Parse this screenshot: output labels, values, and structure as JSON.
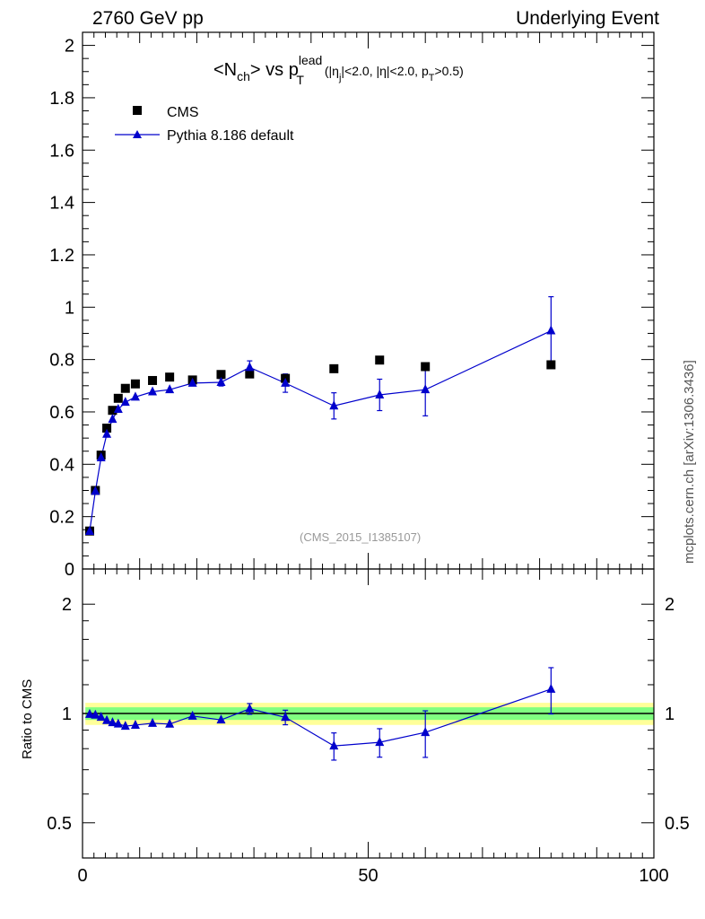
{
  "header": {
    "left": "2760 GeV pp",
    "right": "Underlying Event"
  },
  "side_credit": "mcplots.cern.ch [arXiv:1306.3436]",
  "reference_label": "(CMS_2015_I1385107)",
  "ratio_ylabel": "Ratio to CMS",
  "title": {
    "lhs_main": "<N",
    "lhs_sub": "ch",
    "lhs_close": "> vs p",
    "p_sup": "lead",
    "p_sub": "T",
    "cut1_pre": "(|η",
    "cut1_sub": "j",
    "cut1_post": "|<2.0, |η|<2.0, p",
    "cut2_sub": "T",
    "cut2_post": ">0.5)"
  },
  "legend": {
    "cms": "CMS",
    "pythia": "Pythia 8.186 default"
  },
  "colors": {
    "cms": "#000000",
    "pythia": "#0000cc",
    "band_inner": "#80ff80",
    "band_outer": "#ffff99"
  },
  "chart_data": [
    {
      "type": "scatter",
      "panel": "main",
      "xlim": [
        0,
        100
      ],
      "ylim": [
        0,
        2.05
      ],
      "y_ticks": [
        "0",
        "0.2",
        "0.4",
        "0.6",
        "0.8",
        "1",
        "1.2",
        "1.4",
        "1.6",
        "1.8",
        "2"
      ],
      "x_ticks": [
        "0",
        "50",
        "100"
      ],
      "series": [
        {
          "name": "CMS",
          "x": [
            1.25,
            2.25,
            3.25,
            4.25,
            5.25,
            6.25,
            7.5,
            9.25,
            12.25,
            15.25,
            19.25,
            24.25,
            29.25,
            35.5,
            44,
            52,
            60,
            82
          ],
          "y": [
            0.145,
            0.3,
            0.435,
            0.538,
            0.606,
            0.652,
            0.69,
            0.707,
            0.72,
            0.733,
            0.722,
            0.743,
            0.745,
            0.728,
            0.765,
            0.798,
            0.773,
            0.78
          ]
        },
        {
          "name": "Pythia 8.186 default",
          "x": [
            1.25,
            2.25,
            3.25,
            4.25,
            5.25,
            6.25,
            7.5,
            9.25,
            12.25,
            15.25,
            19.25,
            24.25,
            29.25,
            35.5,
            44,
            52,
            60,
            82
          ],
          "y": [
            0.144,
            0.297,
            0.425,
            0.515,
            0.572,
            0.61,
            0.637,
            0.657,
            0.677,
            0.685,
            0.71,
            0.713,
            0.77,
            0.71,
            0.623,
            0.665,
            0.685,
            0.91
          ],
          "err": [
            0.005,
            0.005,
            0.006,
            0.006,
            0.006,
            0.007,
            0.007,
            0.008,
            0.009,
            0.01,
            0.012,
            0.014,
            0.025,
            0.035,
            0.05,
            0.06,
            0.1,
            0.13
          ]
        }
      ]
    },
    {
      "type": "line",
      "panel": "ratio",
      "scale": "log",
      "xlim": [
        0,
        100
      ],
      "ylim": [
        0.4,
        2.5
      ],
      "y_ticks": [
        "0.5",
        "1",
        "2"
      ],
      "y_tick_values": [
        0.5,
        1,
        2
      ],
      "x": [
        1.25,
        2.25,
        3.25,
        4.25,
        5.25,
        6.25,
        7.5,
        9.25,
        12.25,
        15.25,
        19.25,
        24.25,
        29.25,
        35.5,
        44,
        52,
        60,
        82
      ],
      "ratio": [
        0.995,
        0.99,
        0.977,
        0.957,
        0.944,
        0.936,
        0.923,
        0.929,
        0.94,
        0.935,
        0.984,
        0.96,
        1.03,
        0.976,
        0.814,
        0.833,
        0.887,
        1.167
      ],
      "ratio_err": [
        0.007,
        0.007,
        0.007,
        0.008,
        0.008,
        0.008,
        0.009,
        0.01,
        0.012,
        0.013,
        0.015,
        0.018,
        0.035,
        0.045,
        0.07,
        0.075,
        0.13,
        0.17
      ],
      "band_inner": 0.04,
      "band_outer": 0.07,
      "reference": 1
    }
  ]
}
